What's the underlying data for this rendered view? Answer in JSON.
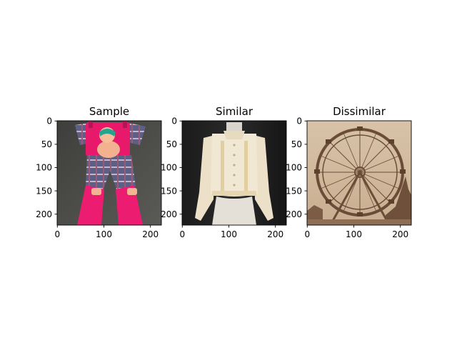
{
  "chart_data": [
    {
      "type": "image",
      "title": "Sample",
      "image": "toddler-pink-overalls-with-plaid-shirt",
      "xlim": [
        0,
        224
      ],
      "ylim": [
        224,
        0
      ],
      "xticks": [
        0,
        100,
        200
      ],
      "yticks": [
        0,
        50,
        100,
        150,
        200
      ]
    },
    {
      "type": "image",
      "title": "Similar",
      "image": "cream-blouse-on-mannequin",
      "xlim": [
        0,
        224
      ],
      "ylim": [
        224,
        0
      ],
      "xticks": [
        0,
        100,
        200
      ],
      "yticks": [
        0,
        50,
        100,
        150,
        200
      ]
    },
    {
      "type": "image",
      "title": "Dissimilar",
      "image": "sepia-ferris-wheel-photo",
      "xlim": [
        0,
        224
      ],
      "ylim": [
        224,
        0
      ],
      "xticks": [
        0,
        100,
        200
      ],
      "yticks": [
        0,
        50,
        100,
        150,
        200
      ]
    }
  ]
}
